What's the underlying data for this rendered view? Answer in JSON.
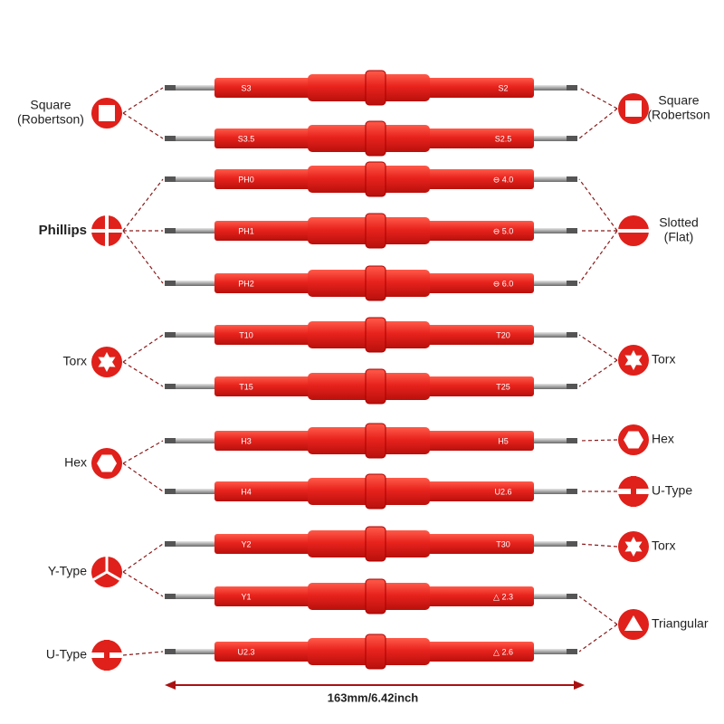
{
  "rows": [
    {
      "left": "S3",
      "right": "S2"
    },
    {
      "left": "S3.5",
      "right": "S2.5"
    },
    {
      "left": "PH0",
      "right": "⊖ 4.0"
    },
    {
      "left": "PH1",
      "right": "⊖ 5.0"
    },
    {
      "left": "PH2",
      "right": "⊖ 6.0"
    },
    {
      "left": "T10",
      "right": "T20"
    },
    {
      "left": "T15",
      "right": "T25"
    },
    {
      "left": "H3",
      "right": "H5"
    },
    {
      "left": "H4",
      "right": "U2.6"
    },
    {
      "left": "Y2",
      "right": "T30"
    },
    {
      "left": "Y1",
      "right": "△ 2.3"
    },
    {
      "left": "U2.3",
      "right": "△ 2.6"
    }
  ],
  "left_types": [
    {
      "lines": [
        "Square",
        "(Robertson)"
      ]
    },
    {
      "lines": [
        "Phillips"
      ]
    },
    {
      "lines": [
        "Torx"
      ]
    },
    {
      "lines": [
        "Hex"
      ]
    },
    {
      "lines": [
        "Y-Type"
      ]
    },
    {
      "lines": [
        "U-Type"
      ]
    }
  ],
  "right_types": [
    {
      "lines": [
        "Square",
        "(Robertson"
      ]
    },
    {
      "lines": [
        "Slotted",
        "(Flat)"
      ]
    },
    {
      "lines": [
        "Torx"
      ]
    },
    {
      "lines": [
        "Hex"
      ]
    },
    {
      "lines": [
        "U-Type"
      ]
    },
    {
      "lines": [
        "Torx"
      ]
    },
    {
      "lines": [
        "Triangular"
      ]
    }
  ],
  "dimension": "163mm/6.42inch"
}
